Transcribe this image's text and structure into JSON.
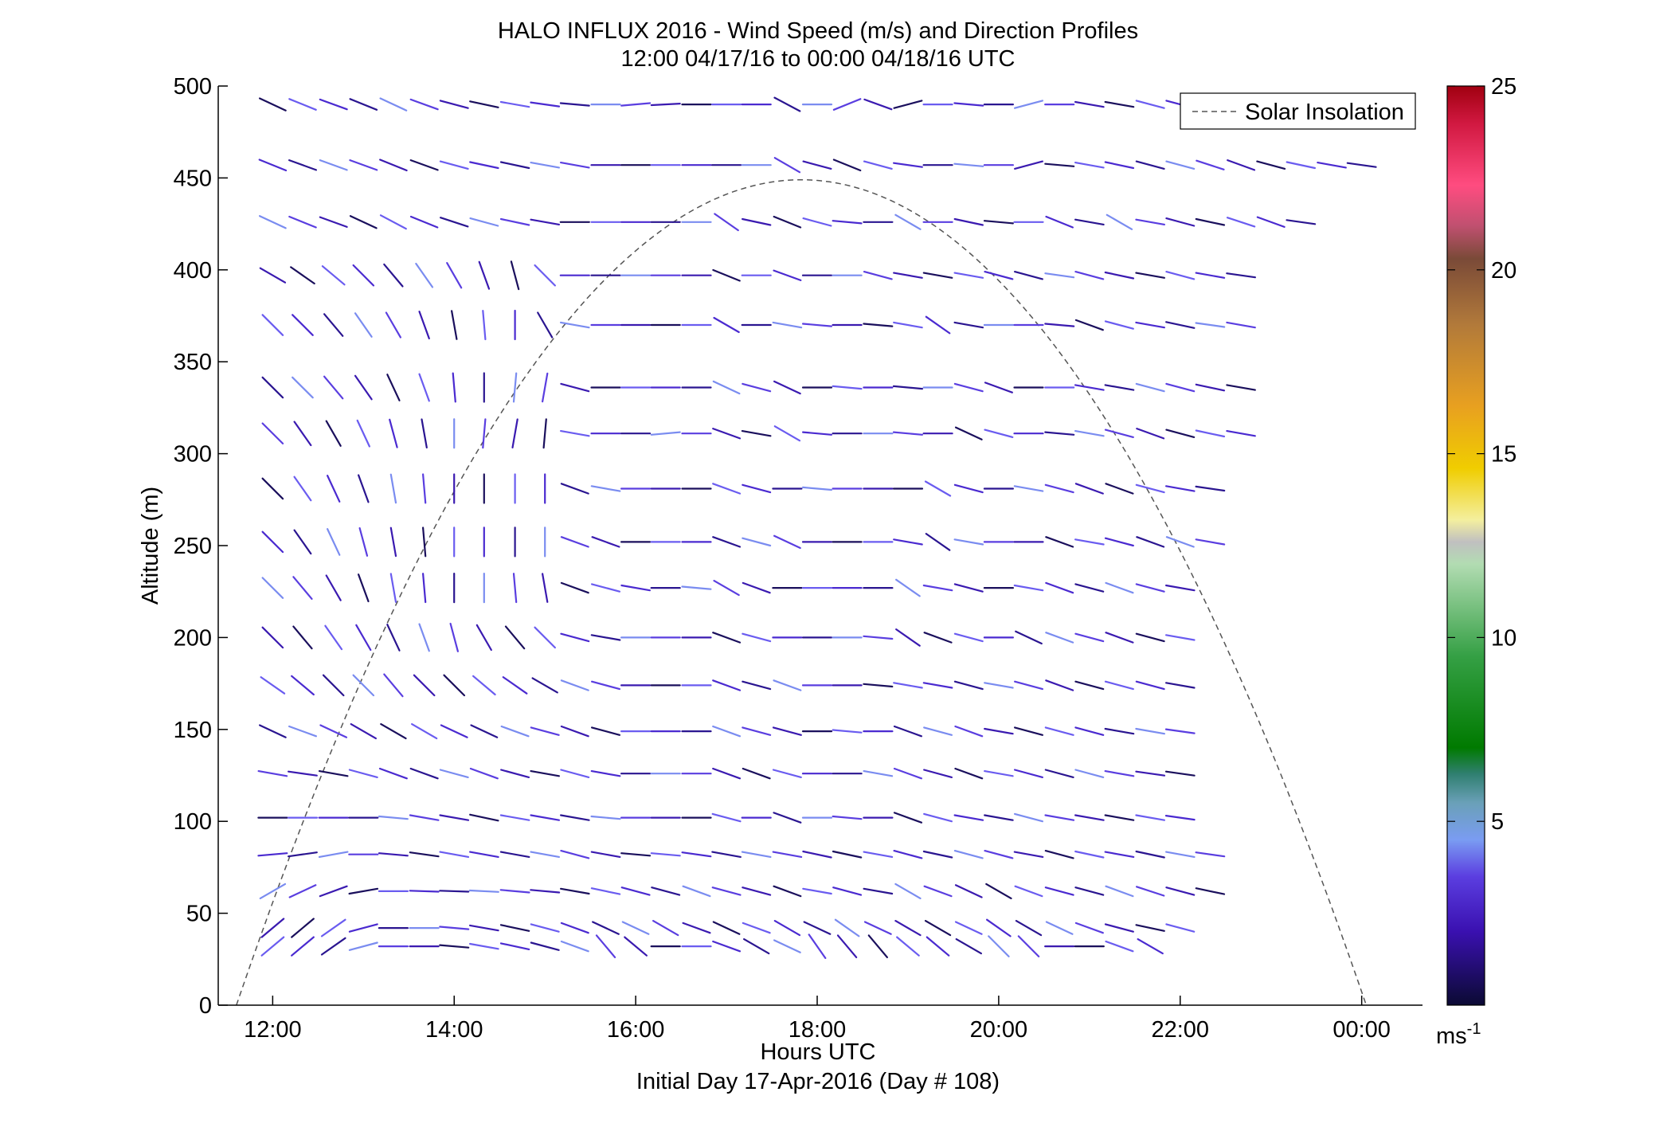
{
  "chart_data": {
    "type": "wind-barb-profile",
    "title": "HALO INFLUX 2016 - Wind Speed (m/s) and Direction Profiles",
    "subtitle": "12:00 04/17/16 to 00:00 04/18/16  UTC",
    "xlabel": "Hours UTC",
    "xlabel2": "Initial Day 17-Apr-2016 (Day # 108)",
    "ylabel": "Altitude (m)",
    "x_ticks": [
      {
        "value": 12,
        "label": "12:00"
      },
      {
        "value": 14,
        "label": "14:00"
      },
      {
        "value": 16,
        "label": "16:00"
      },
      {
        "value": 18,
        "label": "18:00"
      },
      {
        "value": 20,
        "label": "20:00"
      },
      {
        "value": 22,
        "label": "22:00"
      },
      {
        "value": 24,
        "label": "00:00"
      }
    ],
    "xlim": [
      11.4,
      24.67
    ],
    "y_ticks": [
      0,
      50,
      100,
      150,
      200,
      250,
      300,
      350,
      400,
      450,
      500
    ],
    "ylim": [
      0,
      500
    ],
    "legend": {
      "entries": [
        "Solar Insolation"
      ],
      "location": "top-right"
    },
    "solar_insolation": {
      "style": "dashed",
      "color": "#555555",
      "start_hour": 11.6,
      "end_hour": 24.05,
      "peak_hour": 17.8,
      "peak_altitude": 449
    },
    "colorbar": {
      "min": 0,
      "max": 25,
      "ticks": [
        5,
        10,
        15,
        20,
        25
      ],
      "unit": "ms",
      "unit_exponent": "-1",
      "stops": [
        {
          "v": 0,
          "c": "#0b0a33"
        },
        {
          "v": 2,
          "c": "#3a10b0"
        },
        {
          "v": 3.5,
          "c": "#5b3ee0"
        },
        {
          "v": 4.5,
          "c": "#7a9cf2"
        },
        {
          "v": 5.5,
          "c": "#6aa0b8"
        },
        {
          "v": 6.3,
          "c": "#2f7f6f"
        },
        {
          "v": 7,
          "c": "#007a00"
        },
        {
          "v": 9.5,
          "c": "#35a045"
        },
        {
          "v": 12,
          "c": "#b2dcb2"
        },
        {
          "v": 12.6,
          "c": "#c0c0c0"
        },
        {
          "v": 13.2,
          "c": "#f4ef9e"
        },
        {
          "v": 14.6,
          "c": "#f0cd00"
        },
        {
          "v": 16.3,
          "c": "#e8a020"
        },
        {
          "v": 18.5,
          "c": "#b27a3a"
        },
        {
          "v": 20.3,
          "c": "#7a4a38"
        },
        {
          "v": 21.2,
          "c": "#c05070"
        },
        {
          "v": 22.3,
          "c": "#ff4c80"
        },
        {
          "v": 24,
          "c": "#d01840"
        },
        {
          "v": 25,
          "c": "#a00010"
        }
      ]
    },
    "time_columns": [
      12,
      12.33,
      12.67,
      13,
      13.33,
      13.67,
      14,
      14.33,
      14.67,
      15,
      15.33,
      15.67,
      16,
      16.33,
      16.67,
      17,
      17.33,
      17.67,
      18,
      18.33,
      18.67,
      19,
      19.33,
      19.67,
      20,
      20.33,
      20.67,
      21,
      21.33,
      21.67,
      22,
      22.33,
      22.67,
      23,
      23.33,
      23.67,
      24
    ],
    "altitudes": [
      32,
      42,
      62,
      82,
      102,
      126,
      149,
      174,
      200,
      227,
      252,
      281,
      311,
      336,
      370,
      397,
      426,
      457,
      490
    ],
    "wind_barbs": [
      {
        "alt": 490,
        "dirs": [
          -25,
          -22,
          -20,
          -22,
          -25,
          -20,
          -15,
          -12,
          -10,
          -8,
          -5,
          0,
          5,
          3,
          0,
          0,
          0,
          -28,
          0,
          22,
          -20,
          15,
          0,
          -5,
          0,
          15,
          0,
          -10,
          -10,
          -15,
          -15,
          -20,
          -25
        ]
      },
      {
        "alt": 457,
        "dirs": [
          -22,
          -20,
          -20,
          -20,
          -22,
          -20,
          -15,
          -12,
          -12,
          -10,
          -10,
          0,
          0,
          0,
          0,
          0,
          0,
          -30,
          -15,
          -22,
          -15,
          -8,
          0,
          -5,
          0,
          15,
          -5,
          -10,
          -12,
          -15,
          -15,
          -18,
          -20,
          -15,
          -12,
          -10,
          -8
        ]
      },
      {
        "alt": 426,
        "dirs": [
          -25,
          -22,
          -20,
          -25,
          -28,
          -22,
          -18,
          -15,
          -12,
          -10,
          0,
          0,
          0,
          0,
          0,
          -35,
          -12,
          -22,
          -15,
          -5,
          0,
          -30,
          0,
          -12,
          -5,
          0,
          -22,
          -10,
          -30,
          -10,
          -15,
          -12,
          -18,
          -20,
          -8
        ]
      },
      {
        "alt": 397,
        "dirs": [
          -30,
          -35,
          -40,
          -45,
          -50,
          -55,
          -60,
          -70,
          -75,
          -45,
          0,
          0,
          0,
          0,
          0,
          -22,
          0,
          -20,
          0,
          0,
          -15,
          -10,
          -10,
          -10,
          -15,
          -15,
          -8,
          -15,
          -12,
          -10,
          -15,
          -10,
          -8
        ]
      },
      {
        "alt": 370,
        "dirs": [
          -45,
          -45,
          -50,
          -55,
          -60,
          -70,
          -80,
          -85,
          -90,
          -60,
          -10,
          0,
          0,
          0,
          0,
          -30,
          0,
          -10,
          -5,
          0,
          -5,
          -10,
          -35,
          -10,
          0,
          0,
          -5,
          -20,
          -15,
          -10,
          -12,
          -8,
          -10
        ]
      },
      {
        "alt": 336,
        "dirs": [
          -45,
          -45,
          -50,
          -55,
          -65,
          -70,
          -85,
          -90,
          -95,
          -100,
          -15,
          0,
          0,
          0,
          0,
          -25,
          -15,
          -25,
          0,
          -5,
          0,
          -5,
          0,
          -15,
          -20,
          0,
          0,
          -10,
          -10,
          -15,
          -15,
          -12,
          -10
        ]
      },
      {
        "alt": 311,
        "dirs": [
          -45,
          -55,
          -60,
          -65,
          -75,
          -80,
          -90,
          -95,
          -100,
          -95,
          -10,
          0,
          0,
          5,
          0,
          -20,
          -10,
          -30,
          -5,
          0,
          0,
          -5,
          0,
          -25,
          -15,
          0,
          -5,
          -10,
          -15,
          -20,
          -15,
          -12,
          -10
        ]
      },
      {
        "alt": 281,
        "dirs": [
          -45,
          -55,
          -65,
          -70,
          -80,
          -85,
          -90,
          -90,
          -90,
          -90,
          -20,
          -10,
          0,
          0,
          0,
          -20,
          -15,
          0,
          -5,
          0,
          0,
          0,
          -30,
          -15,
          0,
          -10,
          -15,
          -20,
          -20,
          -15,
          -10,
          -8
        ]
      },
      {
        "alt": 252,
        "dirs": [
          -45,
          -55,
          -65,
          -75,
          -80,
          -85,
          -90,
          -90,
          -90,
          -90,
          -20,
          -20,
          0,
          0,
          0,
          -20,
          -15,
          -25,
          0,
          0,
          0,
          -10,
          -35,
          -10,
          0,
          0,
          -20,
          -10,
          -15,
          -20,
          -20,
          -10
        ]
      },
      {
        "alt": 227,
        "dirs": [
          -45,
          -50,
          -60,
          -70,
          -80,
          -85,
          -90,
          -90,
          -85,
          -80,
          -20,
          -15,
          -10,
          0,
          -5,
          -30,
          -20,
          0,
          0,
          0,
          0,
          -35,
          -10,
          -15,
          0,
          -10,
          -20,
          -15,
          -20,
          -15,
          -10
        ]
      },
      {
        "alt": 200,
        "dirs": [
          -45,
          -50,
          -55,
          -60,
          -65,
          -70,
          -75,
          -60,
          -50,
          -45,
          -15,
          -10,
          0,
          0,
          0,
          -20,
          -15,
          0,
          0,
          0,
          -5,
          -35,
          -20,
          -15,
          0,
          -25,
          -20,
          -15,
          -20,
          -15,
          -10
        ]
      },
      {
        "alt": 174,
        "dirs": [
          -35,
          -40,
          -45,
          -45,
          -50,
          -45,
          -45,
          -40,
          -35,
          -30,
          -20,
          -15,
          0,
          0,
          0,
          -20,
          -15,
          -20,
          0,
          0,
          -5,
          -10,
          -10,
          -15,
          -10,
          -15,
          -20,
          -15,
          -15,
          -15,
          -10
        ]
      },
      {
        "alt": 149,
        "dirs": [
          -25,
          -20,
          -25,
          -30,
          -30,
          -30,
          -25,
          -25,
          -20,
          -15,
          -20,
          -15,
          0,
          0,
          0,
          -20,
          -15,
          -15,
          0,
          -5,
          0,
          -20,
          -15,
          -20,
          -10,
          -15,
          -15,
          -15,
          -10,
          -10,
          -8
        ]
      },
      {
        "alt": 126,
        "dirs": [
          -10,
          -8,
          -10,
          -15,
          -20,
          -20,
          -15,
          -20,
          -15,
          -10,
          -15,
          -10,
          0,
          0,
          0,
          -20,
          -20,
          -15,
          0,
          0,
          -10,
          -20,
          -15,
          -20,
          -10,
          -15,
          -15,
          -15,
          -10,
          -8,
          -8
        ]
      },
      {
        "alt": 102,
        "dirs": [
          0,
          0,
          0,
          0,
          -5,
          -10,
          -10,
          -12,
          -10,
          -10,
          -10,
          -5,
          0,
          0,
          0,
          -15,
          0,
          -20,
          0,
          -5,
          0,
          -20,
          -15,
          -10,
          -10,
          -15,
          -10,
          -10,
          -10,
          -10,
          -8
        ]
      },
      {
        "alt": 82,
        "dirs": [
          5,
          8,
          10,
          0,
          -5,
          -8,
          -10,
          -10,
          -10,
          -10,
          -15,
          -10,
          -5,
          -5,
          -8,
          -10,
          -10,
          -10,
          -12,
          -12,
          -10,
          -15,
          -12,
          -15,
          -15,
          -10,
          -15,
          -12,
          -10,
          -12,
          -10,
          -8
        ]
      },
      {
        "alt": 62,
        "dirs": [
          30,
          25,
          20,
          10,
          0,
          -2,
          -2,
          -3,
          -5,
          -5,
          -10,
          -12,
          -15,
          -15,
          -20,
          -15,
          -15,
          -20,
          -10,
          -15,
          -10,
          -30,
          -20,
          -25,
          -30,
          -20,
          -15,
          -15,
          -20,
          -18,
          -15,
          -12
        ]
      },
      {
        "alt": 42,
        "dirs": [
          40,
          40,
          35,
          15,
          0,
          0,
          -5,
          -10,
          -12,
          -15,
          -20,
          -25,
          -25,
          -30,
          -20,
          -25,
          -20,
          -30,
          -25,
          -35,
          -25,
          -30,
          -30,
          -25,
          -35,
          -30,
          -25,
          -20,
          -15,
          -12,
          -15
        ]
      },
      {
        "alt": 32,
        "dirs": [
          40,
          40,
          35,
          15,
          0,
          0,
          -5,
          -10,
          -12,
          -15,
          -20,
          -50,
          -40,
          0,
          0,
          -20,
          -30,
          -25,
          -55,
          -50,
          -50,
          -40,
          -40,
          -30,
          -45,
          -45,
          0,
          0,
          -20,
          -30
        ]
      }
    ]
  }
}
